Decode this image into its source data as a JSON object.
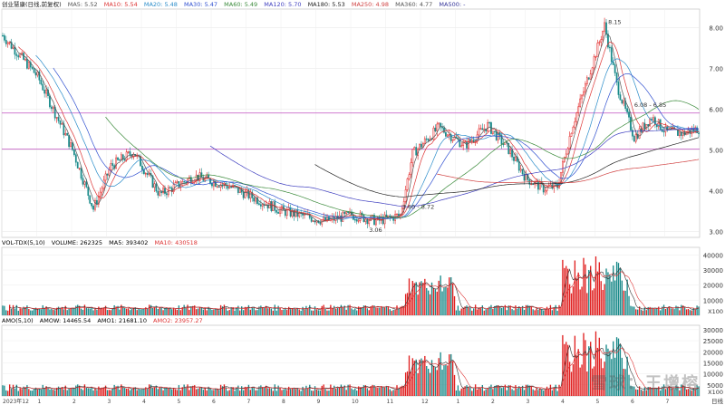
{
  "chart_data": [
    {
      "type": "candlestick",
      "title": "创业慧康(日线,前复权)",
      "legend": [
        {
          "label": "MA5: 5.52",
          "color": "#555555"
        },
        {
          "label": "MA10: 5.54",
          "color": "#d33"
        },
        {
          "label": "MA20: 5.48",
          "color": "#2a8cc9"
        },
        {
          "label": "MA30: 5.47",
          "color": "#3050d0"
        },
        {
          "label": "MA60: 5.49",
          "color": "#3a8a3a"
        },
        {
          "label": "MA120: 5.70",
          "color": "#4040c0"
        },
        {
          "label": "MA180: 5.53",
          "color": "#222222"
        },
        {
          "label": "MA250: 4.98",
          "color": "#d04040"
        },
        {
          "label": "MA360: 4.77",
          "color": "#555555"
        },
        {
          "label": "MA500: -",
          "color": "#333399"
        }
      ],
      "y_ticks": [
        3.0,
        4.0,
        5.0,
        6.0,
        7.0,
        8.0
      ],
      "ylim": [
        2.85,
        8.45
      ],
      "x_tick_labels": [
        "2023年12",
        "1",
        "2",
        "3",
        "4",
        "5",
        "6",
        "7",
        "8",
        "9",
        "10",
        "11",
        "12",
        "1",
        "2",
        "3",
        "4",
        "5",
        "6",
        "7"
      ],
      "annotations": [
        "8.15",
        "6.08 - 6.85",
        "3.60 - 8.72",
        "3.06"
      ],
      "price_markers": [
        5.9,
        5.02
      ],
      "colors": {
        "up": "#e02020",
        "down": "#1a8a8a",
        "grid": "#e6e6e6"
      }
    },
    {
      "type": "bar",
      "title": "VOL-TDX(5,10)",
      "legend": [
        {
          "label": "VOLUME: 262325",
          "color": "#333"
        },
        {
          "label": "MA5: 393402",
          "color": "#333"
        },
        {
          "label": "MA10: 430518",
          "color": "#d33"
        }
      ],
      "y_ticks": [
        10000,
        20000,
        30000,
        40000
      ],
      "ylim": [
        0,
        45000
      ],
      "scale_label": "X100"
    },
    {
      "type": "bar",
      "title": "AMO(5,10)",
      "legend": [
        {
          "label": "AMOW: 14465.54",
          "color": "#333"
        },
        {
          "label": "AMO1: 21681.10",
          "color": "#333"
        },
        {
          "label": "AMO2: 23957.27",
          "color": "#d33"
        }
      ],
      "y_ticks": [
        5000,
        10000,
        15000,
        20000,
        25000,
        30000
      ],
      "ylim": [
        0,
        32000
      ],
      "scale_label": "X100"
    }
  ],
  "watermark": "雪球：王增榕",
  "period_label": "日线"
}
